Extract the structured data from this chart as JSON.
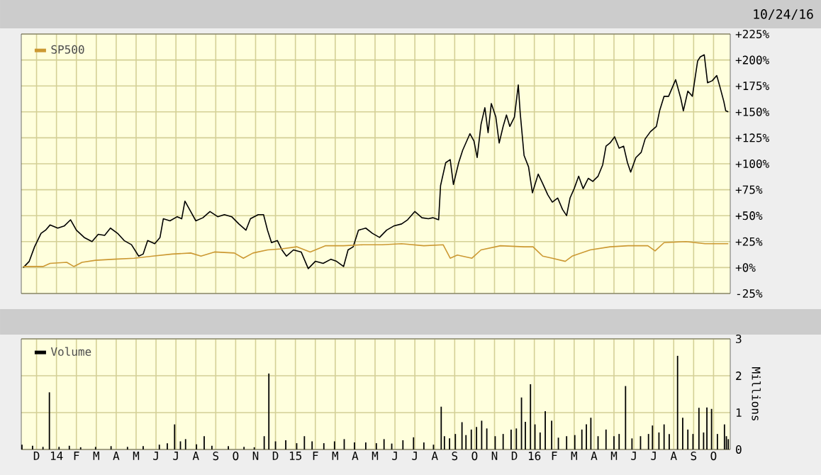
{
  "chart_data": [
    {
      "type": "line",
      "subtitle": "10/24/16",
      "xlim": [
        "2013-11-08",
        "2016-10-27"
      ],
      "xticks": [
        {
          "value": "2013-12",
          "label": null
        },
        {
          "value": "2014-01",
          "label": null
        },
        {
          "value": "2014-02",
          "label": null
        },
        {
          "value": "2014-03",
          "label": null
        },
        {
          "value": "2014-04",
          "label": null
        },
        {
          "value": "2014-05",
          "label": null
        },
        {
          "value": "2014-06",
          "label": null
        },
        {
          "value": "2014-07",
          "label": null
        },
        {
          "value": "2014-08",
          "label": null
        },
        {
          "value": "2014-09",
          "label": null
        },
        {
          "value": "2014-10",
          "label": null
        },
        {
          "value": "2014-11",
          "label": null
        },
        {
          "value": "2014-12",
          "label": null
        },
        {
          "value": "2015-01",
          "label": null
        },
        {
          "value": "2015-02",
          "label": null
        },
        {
          "value": "2015-03",
          "label": null
        },
        {
          "value": "2015-04",
          "label": null
        },
        {
          "value": "2015-05",
          "label": null
        },
        {
          "value": "2015-06",
          "label": null
        },
        {
          "value": "2015-07",
          "label": null
        },
        {
          "value": "2015-08",
          "label": null
        },
        {
          "value": "2015-09",
          "label": null
        },
        {
          "value": "2015-10",
          "label": null
        },
        {
          "value": "2015-11",
          "label": null
        },
        {
          "value": "2015-12",
          "label": null
        },
        {
          "value": "2016-01",
          "label": null
        },
        {
          "value": "2016-02",
          "label": null
        },
        {
          "value": "2016-03",
          "label": null
        },
        {
          "value": "2016-04",
          "label": null
        },
        {
          "value": "2016-05",
          "label": null
        },
        {
          "value": "2016-06",
          "label": null
        },
        {
          "value": "2016-07",
          "label": null
        },
        {
          "value": "2016-08",
          "label": null
        },
        {
          "value": "2016-09",
          "label": null
        },
        {
          "value": "2016-10",
          "label": null
        }
      ],
      "ylim": [
        -25,
        225
      ],
      "yticks": [
        {
          "value": -25,
          "label": "-25%"
        },
        {
          "value": 0,
          "label": "+0%"
        },
        {
          "value": 25,
          "label": "+25%"
        },
        {
          "value": 50,
          "label": "+50%"
        },
        {
          "value": 75,
          "label": "+75%"
        },
        {
          "value": 100,
          "label": "+100%"
        },
        {
          "value": 125,
          "label": "+125%"
        },
        {
          "value": 150,
          "label": "+150%"
        },
        {
          "value": 175,
          "label": "+175%"
        },
        {
          "value": 200,
          "label": "+200%"
        },
        {
          "value": 225,
          "label": "+225%"
        }
      ],
      "tick_labels": "y",
      "grid": true,
      "legend": "top left",
      "marker": "none",
      "line_style": "solid",
      "series": [
        {
          "color": "#000000",
          "x": [
            "2013-11-11",
            "2013-11-20",
            "2013-11-28",
            "2013-12-08",
            "2013-12-15",
            "2013-12-22",
            "2014-01-03",
            "2014-01-13",
            "2014-01-23",
            "2014-02-01",
            "2014-02-12",
            "2014-02-23",
            "2014-03-04",
            "2014-03-14",
            "2014-03-23",
            "2014-04-03",
            "2014-04-13",
            "2014-04-24",
            "2014-05-05",
            "2014-05-12",
            "2014-05-19",
            "2014-05-30",
            "2014-06-07",
            "2014-06-12",
            "2014-06-22",
            "2014-07-03",
            "2014-07-10",
            "2014-07-15",
            "2014-07-24",
            "2014-08-01",
            "2014-08-12",
            "2014-08-23",
            "2014-09-04",
            "2014-09-14",
            "2014-09-25",
            "2014-10-06",
            "2014-10-17",
            "2014-10-24",
            "2014-11-05",
            "2014-11-13",
            "2014-11-19",
            "2014-11-25",
            "2014-12-04",
            "2014-12-11",
            "2014-12-18",
            "2014-12-29",
            "2015-01-10",
            "2015-01-21",
            "2015-02-01",
            "2015-02-12",
            "2015-02-23",
            "2015-03-03",
            "2015-03-14",
            "2015-03-21",
            "2015-03-29",
            "2015-04-06",
            "2015-04-17",
            "2015-04-27",
            "2015-05-08",
            "2015-05-19",
            "2015-05-30",
            "2015-06-11",
            "2015-06-20",
            "2015-07-01",
            "2015-07-12",
            "2015-07-22",
            "2015-07-29",
            "2015-08-07",
            "2015-08-10",
            "2015-08-18",
            "2015-08-25",
            "2015-08-30",
            "2015-09-07",
            "2015-09-13",
            "2015-09-24",
            "2015-09-30",
            "2015-10-05",
            "2015-10-11",
            "2015-10-17",
            "2015-10-22",
            "2015-10-27",
            "2015-11-03",
            "2015-11-08",
            "2015-11-14",
            "2015-11-19",
            "2015-11-24",
            "2015-12-01",
            "2015-12-07",
            "2015-12-10",
            "2015-12-16",
            "2015-12-23",
            "2015-12-29",
            "2016-01-07",
            "2016-01-14",
            "2016-01-22",
            "2016-01-29",
            "2016-02-06",
            "2016-02-13",
            "2016-02-19",
            "2016-02-24",
            "2016-03-01",
            "2016-03-08",
            "2016-03-15",
            "2016-03-23",
            "2016-03-30",
            "2016-04-07",
            "2016-04-14",
            "2016-04-19",
            "2016-04-25",
            "2016-05-02",
            "2016-05-09",
            "2016-05-16",
            "2016-05-22",
            "2016-05-27",
            "2016-06-04",
            "2016-06-12",
            "2016-06-18",
            "2016-06-26",
            "2016-07-05",
            "2016-07-10",
            "2016-07-17",
            "2016-07-24",
            "2016-08-04",
            "2016-08-12",
            "2016-08-16",
            "2016-08-23",
            "2016-08-30",
            "2016-09-07",
            "2016-09-11",
            "2016-09-17",
            "2016-09-22",
            "2016-09-29",
            "2016-10-06",
            "2016-10-11",
            "2016-10-17",
            "2016-10-20",
            "2016-10-24"
          ],
          "values": [
            0,
            6,
            20,
            33,
            36,
            41,
            38,
            40,
            46,
            36,
            29,
            25,
            32,
            31,
            38,
            33,
            26,
            22,
            11,
            13,
            26,
            23,
            29,
            47,
            45,
            49,
            47,
            64,
            54,
            45,
            48,
            54,
            49,
            51,
            49,
            42,
            36,
            47,
            51,
            51,
            36,
            24,
            26,
            17,
            11,
            17,
            15,
            -1,
            6,
            4,
            8,
            6,
            1,
            17,
            20,
            36,
            38,
            33,
            29,
            36,
            40,
            42,
            46,
            54,
            48,
            47,
            48,
            46,
            79,
            101,
            104,
            80,
            101,
            113,
            129,
            122,
            106,
            138,
            154,
            130,
            158,
            145,
            120,
            136,
            147,
            136,
            145,
            176,
            149,
            108,
            97,
            72,
            90,
            81,
            70,
            63,
            67,
            56,
            50,
            67,
            76,
            88,
            76,
            86,
            83,
            88,
            99,
            117,
            120,
            126,
            115,
            117,
            101,
            92,
            106,
            111,
            124,
            131,
            136,
            151,
            165,
            165,
            181,
            163,
            151,
            170,
            165,
            199,
            203,
            205,
            178,
            180,
            185,
            174,
            160,
            151,
            150
          ]
        },
        {
          "name": "SP500",
          "color": "#cc9933",
          "x": [
            "2013-11-11",
            "2013-12-11",
            "2013-12-22",
            "2014-01-17",
            "2014-01-28",
            "2014-02-09",
            "2014-02-28",
            "2014-03-29",
            "2014-04-28",
            "2014-05-27",
            "2014-06-25",
            "2014-07-24",
            "2014-08-09",
            "2014-08-30",
            "2014-09-29",
            "2014-10-13",
            "2014-10-28",
            "2014-11-19",
            "2014-12-11",
            "2015-01-03",
            "2015-01-24",
            "2015-02-15",
            "2015-03-14",
            "2015-04-13",
            "2015-05-12",
            "2015-06-11",
            "2015-07-15",
            "2015-08-14",
            "2015-08-25",
            "2015-09-05",
            "2015-09-27",
            "2015-10-11",
            "2015-11-10",
            "2015-12-16",
            "2015-12-30",
            "2016-01-14",
            "2016-01-29",
            "2016-02-17",
            "2016-02-27",
            "2016-03-26",
            "2016-04-25",
            "2016-05-23",
            "2016-06-22",
            "2016-07-03",
            "2016-07-17",
            "2016-08-20",
            "2016-09-18",
            "2016-10-24"
          ],
          "values": [
            1,
            1,
            4,
            5,
            1,
            5,
            7,
            8,
            9,
            11,
            13,
            14,
            11,
            15,
            14,
            9,
            14,
            17,
            18,
            20,
            15,
            21,
            21,
            22,
            22,
            23,
            21,
            22,
            9,
            12,
            9,
            17,
            21,
            20,
            20,
            11,
            9,
            6,
            11,
            17,
            20,
            21,
            21,
            16,
            24,
            25,
            23,
            23
          ]
        }
      ]
    },
    {
      "type": "bar",
      "ylabel": "Millions",
      "xlim": [
        "2013-11-08",
        "2016-10-27"
      ],
      "xticks": [
        {
          "value": "2013-12",
          "label": "D"
        },
        {
          "value": "2014-01",
          "label": "14"
        },
        {
          "value": "2014-02",
          "label": "F"
        },
        {
          "value": "2014-03",
          "label": "M"
        },
        {
          "value": "2014-04",
          "label": "A"
        },
        {
          "value": "2014-05",
          "label": "M"
        },
        {
          "value": "2014-06",
          "label": "J"
        },
        {
          "value": "2014-07",
          "label": "J"
        },
        {
          "value": "2014-08",
          "label": "A"
        },
        {
          "value": "2014-09",
          "label": "S"
        },
        {
          "value": "2014-10",
          "label": "O"
        },
        {
          "value": "2014-11",
          "label": "N"
        },
        {
          "value": "2014-12",
          "label": "D"
        },
        {
          "value": "2015-01",
          "label": "15"
        },
        {
          "value": "2015-02",
          "label": "F"
        },
        {
          "value": "2015-03",
          "label": "M"
        },
        {
          "value": "2015-04",
          "label": "A"
        },
        {
          "value": "2015-05",
          "label": "M"
        },
        {
          "value": "2015-06",
          "label": "J"
        },
        {
          "value": "2015-07",
          "label": "J"
        },
        {
          "value": "2015-08",
          "label": "A"
        },
        {
          "value": "2015-09",
          "label": "S"
        },
        {
          "value": "2015-10",
          "label": "O"
        },
        {
          "value": "2015-11",
          "label": "N"
        },
        {
          "value": "2015-12",
          "label": "D"
        },
        {
          "value": "2016-01",
          "label": "16"
        },
        {
          "value": "2016-02",
          "label": "F"
        },
        {
          "value": "2016-03",
          "label": "M"
        },
        {
          "value": "2016-04",
          "label": "A"
        },
        {
          "value": "2016-05",
          "label": "M"
        },
        {
          "value": "2016-06",
          "label": "J"
        },
        {
          "value": "2016-07",
          "label": "J"
        },
        {
          "value": "2016-08",
          "label": "A"
        },
        {
          "value": "2016-09",
          "label": "S"
        },
        {
          "value": "2016-10",
          "label": "O"
        }
      ],
      "ylim": [
        0,
        3
      ],
      "yticks": [
        0,
        1,
        2,
        3
      ],
      "grid": true,
      "legend": "top left",
      "series": [
        {
          "name": "Volume",
          "color": "#000000",
          "x": [
            "2013-11-09",
            "2013-11-25",
            "2013-12-11",
            "2013-12-21",
            "2014-01-05",
            "2014-01-21",
            "2014-02-07",
            "2014-02-28",
            "2014-03-24",
            "2014-04-18",
            "2014-05-12",
            "2014-06-06",
            "2014-06-18",
            "2014-06-29",
            "2014-07-08",
            "2014-07-16",
            "2014-08-02",
            "2014-08-14",
            "2014-08-26",
            "2014-09-20",
            "2014-10-14",
            "2014-10-30",
            "2014-11-14",
            "2014-11-21",
            "2014-12-01",
            "2014-12-17",
            "2015-01-03",
            "2015-01-15",
            "2015-01-27",
            "2015-02-13",
            "2015-02-28",
            "2015-03-15",
            "2015-03-31",
            "2015-04-17",
            "2015-05-03",
            "2015-05-15",
            "2015-05-27",
            "2015-06-13",
            "2015-06-29",
            "2015-07-15",
            "2015-07-30",
            "2015-08-11",
            "2015-08-16",
            "2015-08-24",
            "2015-09-02",
            "2015-09-12",
            "2015-09-18",
            "2015-09-26",
            "2015-10-04",
            "2015-10-12",
            "2015-10-20",
            "2015-11-02",
            "2015-11-14",
            "2015-11-26",
            "2015-12-04",
            "2015-12-12",
            "2015-12-18",
            "2015-12-26",
            "2016-01-02",
            "2016-01-10",
            "2016-01-18",
            "2016-01-28",
            "2016-02-07",
            "2016-02-19",
            "2016-03-02",
            "2016-03-13",
            "2016-03-20",
            "2016-03-27",
            "2016-04-07",
            "2016-04-19",
            "2016-05-01",
            "2016-05-09",
            "2016-05-19",
            "2016-05-29",
            "2016-06-11",
            "2016-06-23",
            "2016-06-29",
            "2016-07-09",
            "2016-07-17",
            "2016-07-25",
            "2016-08-07",
            "2016-08-15",
            "2016-08-23",
            "2016-08-31",
            "2016-09-09",
            "2016-09-16",
            "2016-09-21",
            "2016-09-28",
            "2016-10-07",
            "2016-10-18",
            "2016-10-21",
            "2016-10-24"
          ],
          "values": [
            0.13,
            0.1,
            0.07,
            1.55,
            0.07,
            0.1,
            0.06,
            0.07,
            0.09,
            0.07,
            0.09,
            0.13,
            0.17,
            0.68,
            0.22,
            0.28,
            0.14,
            0.36,
            0.1,
            0.09,
            0.07,
            0.06,
            0.36,
            2.06,
            0.22,
            0.25,
            0.17,
            0.36,
            0.22,
            0.17,
            0.22,
            0.28,
            0.19,
            0.19,
            0.17,
            0.28,
            0.16,
            0.25,
            0.33,
            0.19,
            0.13,
            1.16,
            0.36,
            0.3,
            0.42,
            0.74,
            0.39,
            0.54,
            0.61,
            0.78,
            0.57,
            0.36,
            0.42,
            0.54,
            0.57,
            1.41,
            0.75,
            1.77,
            0.68,
            0.46,
            1.04,
            0.78,
            0.32,
            0.36,
            0.39,
            0.54,
            0.68,
            0.86,
            0.36,
            0.54,
            0.36,
            0.42,
            1.72,
            0.3,
            0.36,
            0.42,
            0.65,
            0.46,
            0.68,
            0.42,
            2.54,
            0.86,
            0.54,
            0.42,
            1.13,
            0.46,
            1.14,
            1.1,
            0.42,
            0.68,
            0.36,
            0.28
          ]
        }
      ]
    }
  ]
}
